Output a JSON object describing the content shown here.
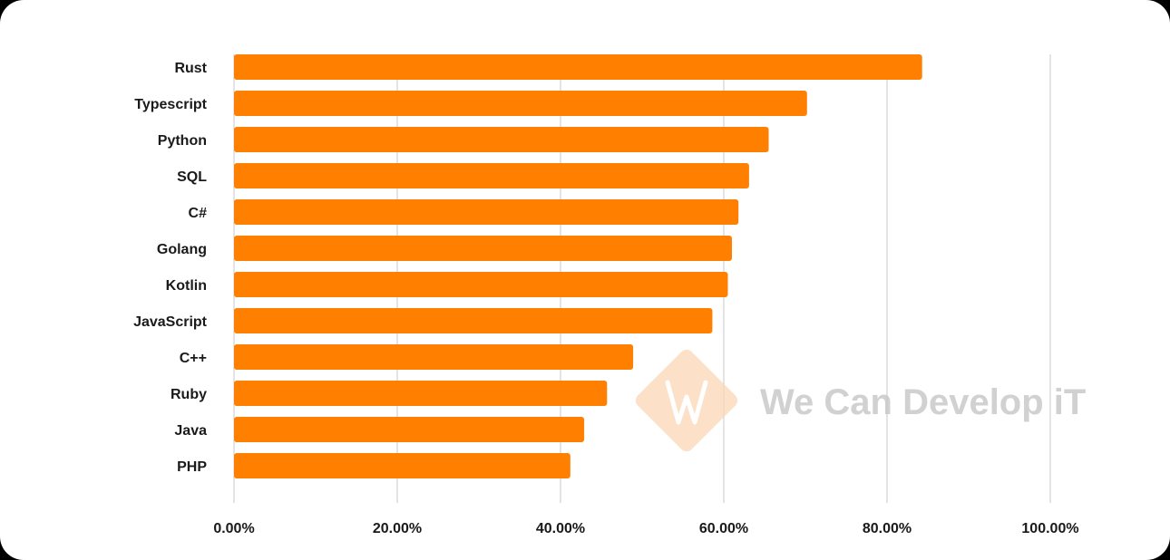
{
  "chart_data": {
    "type": "bar",
    "orientation": "horizontal",
    "categories": [
      "Rust",
      "Typescript",
      "Python",
      "SQL",
      "C#",
      "Golang",
      "Kotlin",
      "JavaScript",
      "C++",
      "Ruby",
      "Java",
      "PHP"
    ],
    "values": [
      84.3,
      70.2,
      65.5,
      63.1,
      61.8,
      61.0,
      60.5,
      58.6,
      48.9,
      45.7,
      42.9,
      41.2
    ],
    "xlim": [
      0,
      100
    ],
    "ticks": [
      "0.00%",
      "20.00%",
      "40.00%",
      "60.00%",
      "80.00%",
      "100.00%"
    ],
    "tick_values": [
      0,
      20,
      40,
      60,
      80,
      100
    ],
    "grid": true,
    "legend": "none",
    "bar_color": "#ff7f00",
    "grid_color": "#c8c8c8",
    "title": "",
    "xlabel": "",
    "ylabel": ""
  },
  "watermark": {
    "text": "We Can Develop iT",
    "logo_color": "#fbd5b5",
    "text_color": "#c9c9c9"
  }
}
